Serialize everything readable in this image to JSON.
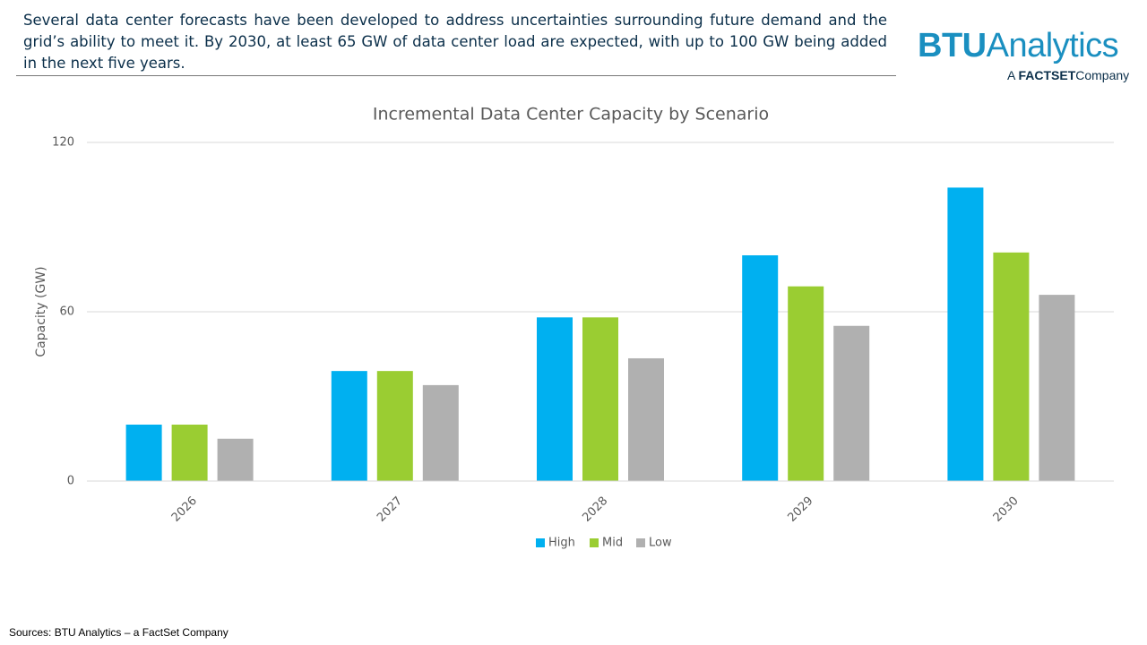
{
  "header": {
    "text": "Several data center forecasts have been developed to address uncertainties surrounding future demand and the grid’s ability to meet it. By 2030, at least 65 GW of data center load are expected, with up to 100 GW being added in the next five years."
  },
  "logo": {
    "name_bold": "BTU",
    "name": "Analytics",
    "tagline_prefix": "A",
    "tagline_brand": "FACTSET",
    "tagline_suffix": "Company"
  },
  "source": "Sources: BTU Analytics – a FactSet Company",
  "chart_data": {
    "type": "bar",
    "title": "Incremental Data Center Capacity by Scenario",
    "y_label": "Capacity (GW)",
    "categories": [
      "2026",
      "2027",
      "2028",
      "2029",
      "2030"
    ],
    "series": [
      {
        "name": "High",
        "color": "#00b0f0",
        "values": [
          20,
          39,
          58,
          80,
          104
        ]
      },
      {
        "name": "Mid",
        "color": "#9acd32",
        "values": [
          20,
          39,
          58,
          69,
          81
        ]
      },
      {
        "name": "Low",
        "color": "#b0b0b0",
        "values": [
          15,
          34,
          43.5,
          55,
          66
        ]
      }
    ],
    "ylim": [
      0,
      120
    ],
    "yticks": [
      0,
      60,
      120
    ],
    "grid": true,
    "legend": "bottom"
  }
}
